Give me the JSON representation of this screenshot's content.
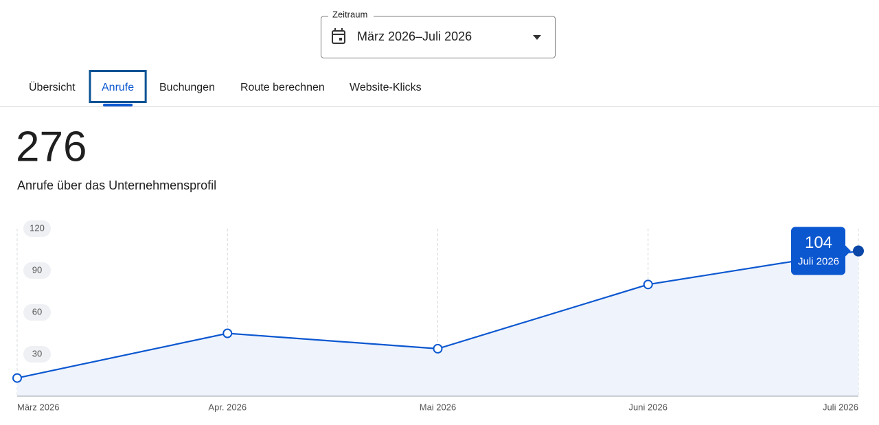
{
  "date_range": {
    "label": "Zeitraum",
    "value": "März 2026–Juli 2026"
  },
  "tabs": [
    {
      "label": "Übersicht",
      "selected": false
    },
    {
      "label": "Anrufe",
      "selected": true
    },
    {
      "label": "Buchungen",
      "selected": false
    },
    {
      "label": "Route berechnen",
      "selected": false
    },
    {
      "label": "Website-Klicks",
      "selected": false
    }
  ],
  "summary": {
    "total": 276,
    "label": "Anrufe über das Unternehmensprofil"
  },
  "chart_data": {
    "type": "line",
    "categories": [
      "März 2026",
      "Apr. 2026",
      "Mai 2026",
      "Juni 2026",
      "Juli 2026"
    ],
    "values": [
      13,
      45,
      34,
      80,
      104
    ],
    "color": "#0b57d0",
    "ylim": [
      0,
      120
    ],
    "yticks": [
      30,
      60,
      90,
      120
    ],
    "grid": true
  }
}
